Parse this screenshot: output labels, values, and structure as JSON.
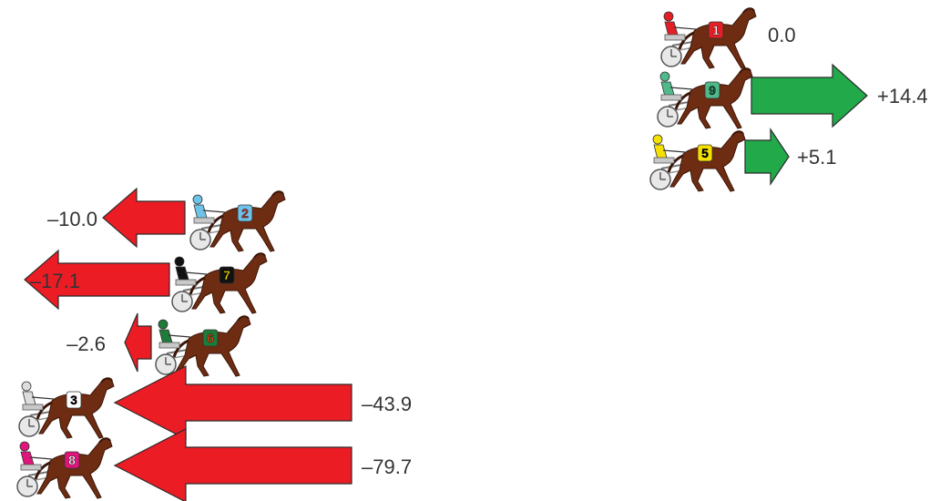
{
  "colors": {
    "gain_arrow": "#21a94a",
    "loss_arrow": "#ec1c24",
    "horse": "#6e2c12",
    "horse_dark": "#3a1608",
    "label_text": "#333333"
  },
  "horses": [
    {
      "number": "1",
      "value": "0.0",
      "change": 0.0,
      "saddle_color": "#e31e24",
      "number_color": "#ffffff",
      "driver_color": "#e31e24"
    },
    {
      "number": "9",
      "value": "+14.4",
      "change": 14.4,
      "saddle_color": "#4fb98a",
      "number_color": "#1c5a3a",
      "driver_color": "#4fb98a"
    },
    {
      "number": "5",
      "value": "+5.1",
      "change": 5.1,
      "saddle_color": "#f5e000",
      "number_color": "#000000",
      "driver_color": "#f5e000"
    },
    {
      "number": "2",
      "value": "–10.0",
      "change": -10.0,
      "saddle_color": "#6fc3e8",
      "number_color": "#c0392b",
      "driver_color": "#6fc3e8"
    },
    {
      "number": "7",
      "value": "–17.1",
      "change": -17.1,
      "saddle_color": "#111111",
      "number_color": "#f5e000",
      "driver_color": "#111111"
    },
    {
      "number": "6",
      "value": "–2.6",
      "change": -2.6,
      "saddle_color": "#1e7b3a",
      "number_color": "#e04a1a",
      "driver_color": "#1e7b3a"
    },
    {
      "number": "3",
      "value": "–43.9",
      "change": -43.9,
      "saddle_color": "#ffffff",
      "number_color": "#000000",
      "driver_color": "#dddddd"
    },
    {
      "number": "8",
      "value": "–79.7",
      "change": -79.7,
      "saddle_color": "#e0147a",
      "number_color": "#ffffff",
      "driver_color": "#e0147a"
    }
  ]
}
